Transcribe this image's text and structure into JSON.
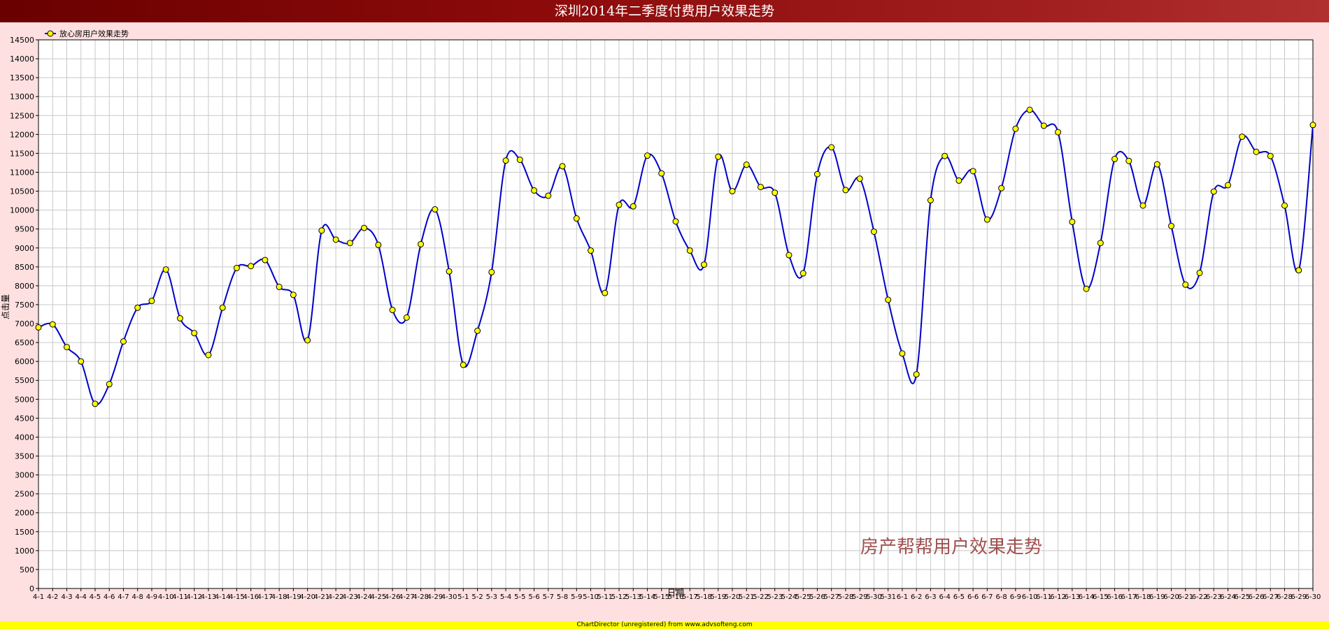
{
  "chart_data": {
    "type": "line",
    "title": "深圳2014年二季度付费用户效果走势",
    "xlabel": "日期",
    "ylabel": "点击量",
    "ylim": [
      0,
      14500
    ],
    "ystep": 500,
    "grid": true,
    "legend_placement": "top-left",
    "watermark": "房产帮帮用户效果走势",
    "footer": "ChartDirector (unregistered) from www.advsofteng.com",
    "categories": [
      "4-1",
      "4-2",
      "4-3",
      "4-4",
      "4-5",
      "4-6",
      "4-7",
      "4-8",
      "4-9",
      "4-10",
      "4-11",
      "4-12",
      "4-13",
      "4-14",
      "4-15",
      "4-16",
      "4-17",
      "4-18",
      "4-19",
      "4-20",
      "4-21",
      "4-22",
      "4-23",
      "4-24",
      "4-25",
      "4-26",
      "4-27",
      "4-28",
      "4-29",
      "4-30",
      "5-1",
      "5-2",
      "5-3",
      "5-4",
      "5-5",
      "5-6",
      "5-7",
      "5-8",
      "5-9",
      "5-10",
      "5-11",
      "5-12",
      "5-13",
      "5-14",
      "5-15",
      "5-16",
      "5-17",
      "5-18",
      "5-19",
      "5-20",
      "5-21",
      "5-22",
      "5-23",
      "5-24",
      "5-25",
      "5-26",
      "5-27",
      "5-28",
      "5-29",
      "5-30",
      "5-31",
      "6-1",
      "6-2",
      "6-3",
      "6-4",
      "6-5",
      "6-6",
      "6-7",
      "6-8",
      "6-9",
      "6-10",
      "6-11",
      "6-12",
      "6-13",
      "6-14",
      "6-15",
      "6-16",
      "6-17",
      "6-18",
      "6-19",
      "6-20",
      "6-21",
      "6-22",
      "6-23",
      "6-24",
      "6-25",
      "6-26",
      "6-27",
      "6-28",
      "6-29",
      "6-30"
    ],
    "series": [
      {
        "name": "放心房用户效果走势",
        "color": "#0000c8",
        "marker_color": "#ffff00",
        "values": [
          6900,
          6980,
          6380,
          6000,
          4880,
          5400,
          6530,
          7420,
          7600,
          8430,
          7140,
          6750,
          6170,
          7420,
          8470,
          8520,
          8680,
          7970,
          7760,
          6560,
          9460,
          9220,
          9130,
          9530,
          9080,
          7360,
          7160,
          9100,
          10020,
          8380,
          5910,
          6810,
          8360,
          11310,
          11330,
          10520,
          10380,
          11160,
          9780,
          8930,
          7810,
          10140,
          10100,
          11440,
          10970,
          9700,
          8930,
          8560,
          11410,
          10500,
          11200,
          10610,
          10460,
          8810,
          8330,
          10950,
          11660,
          10530,
          10830,
          9430,
          7630,
          6210,
          5660,
          10260,
          11430,
          10780,
          11030,
          9750,
          10580,
          12150,
          12650,
          12230,
          12060,
          9690,
          7920,
          9130,
          11350,
          11300,
          10120,
          11210,
          9580,
          8030,
          8340,
          10490,
          10660,
          11940,
          11540,
          11430,
          10120,
          8410,
          12250
        ]
      }
    ]
  }
}
